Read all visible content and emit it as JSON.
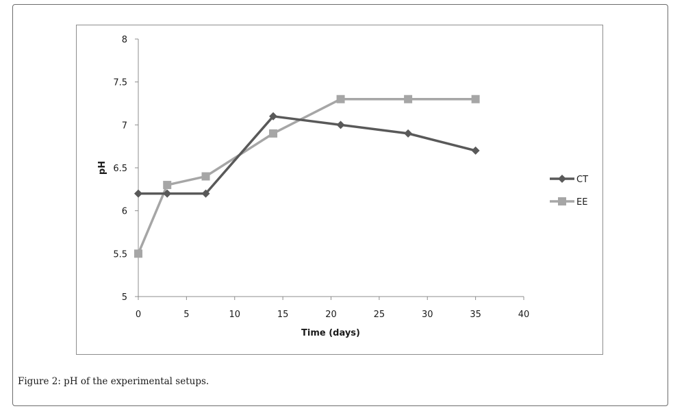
{
  "caption": "Figure 2: pH of the experimental setups.",
  "chart_data": {
    "type": "line",
    "title": "",
    "xlabel": "Time (days)",
    "ylabel": "pH",
    "xlim": [
      0,
      40
    ],
    "ylim": [
      5,
      8
    ],
    "x_ticks": [
      "0",
      "5",
      "10",
      "15",
      "20",
      "25",
      "30",
      "35",
      "40"
    ],
    "y_ticks": [
      "5",
      "5.5",
      "6",
      "6.5",
      "7",
      "7.5",
      "8"
    ],
    "grid": false,
    "legend_position": "right",
    "series": [
      {
        "name": "CT",
        "marker": "diamond",
        "color": "#595959",
        "x": [
          0,
          3,
          7,
          14,
          21,
          28,
          35
        ],
        "y": [
          6.2,
          6.2,
          6.2,
          7.1,
          7.0,
          6.9,
          6.7
        ]
      },
      {
        "name": "EE",
        "marker": "square",
        "color": "#a6a6a6",
        "x": [
          0,
          3,
          7,
          14,
          21,
          28,
          35
        ],
        "y": [
          5.5,
          6.3,
          6.4,
          6.9,
          7.3,
          7.3,
          7.3
        ]
      }
    ]
  }
}
